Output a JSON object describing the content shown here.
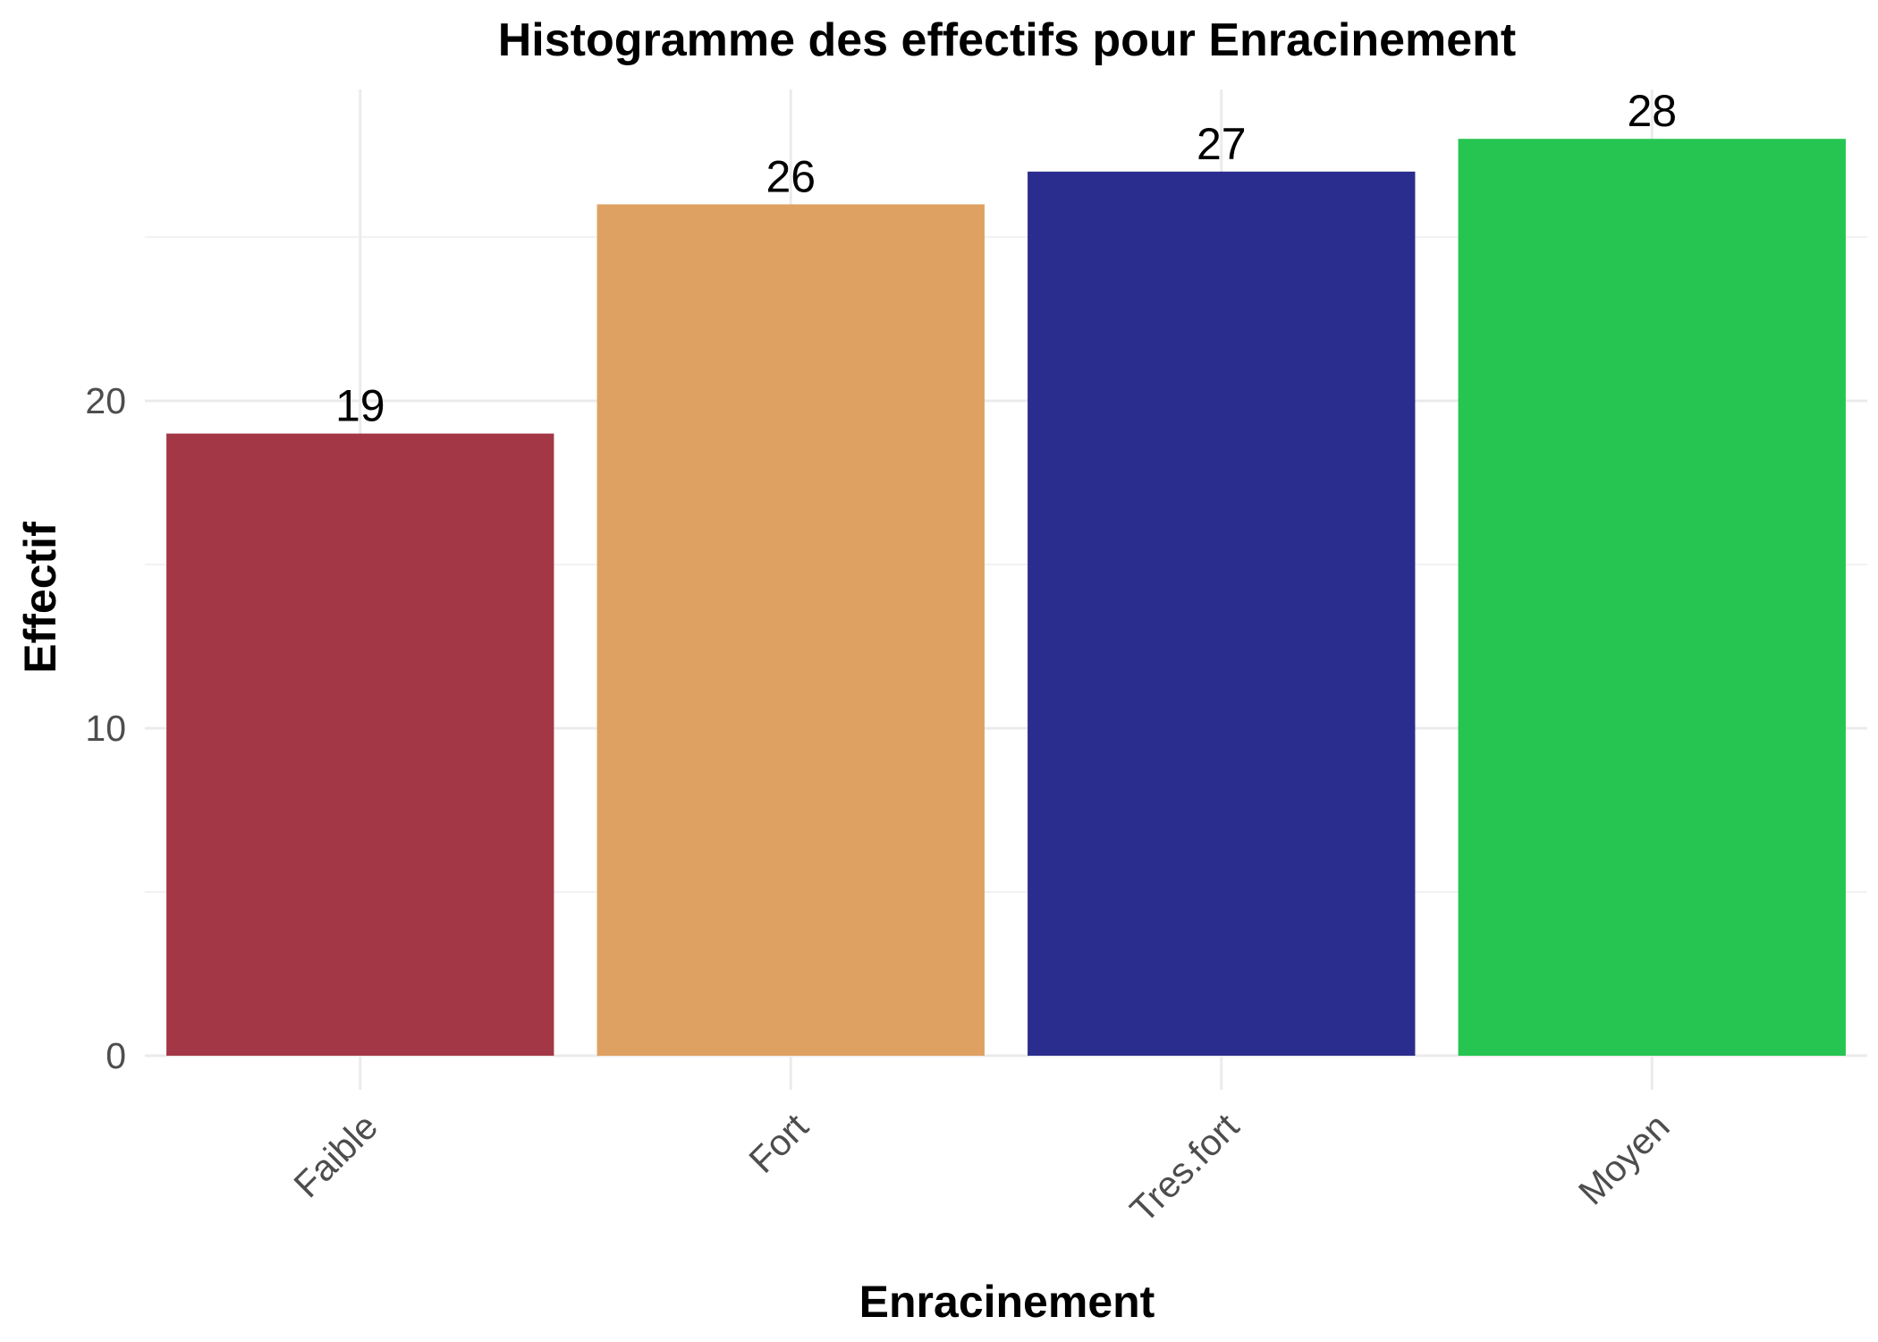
{
  "chart_data": {
    "type": "bar",
    "title": "Histogramme des effectifs pour Enracinement",
    "xlabel": "Enracinement",
    "ylabel": "Effectif",
    "categories": [
      "Faible",
      "Fort",
      "Tres.fort",
      "Moyen"
    ],
    "values": [
      19,
      26,
      27,
      28
    ],
    "colors": [
      "#a33745",
      "#dfa161",
      "#2b2d8e",
      "#26c552"
    ],
    "ylim": [
      0,
      28
    ],
    "yticks": [
      0,
      10,
      20
    ],
    "y_minor_ticks": [
      5,
      15,
      25
    ],
    "grid": true,
    "legend": "none",
    "data_labels": true,
    "x_tick_rotation": "45deg"
  }
}
